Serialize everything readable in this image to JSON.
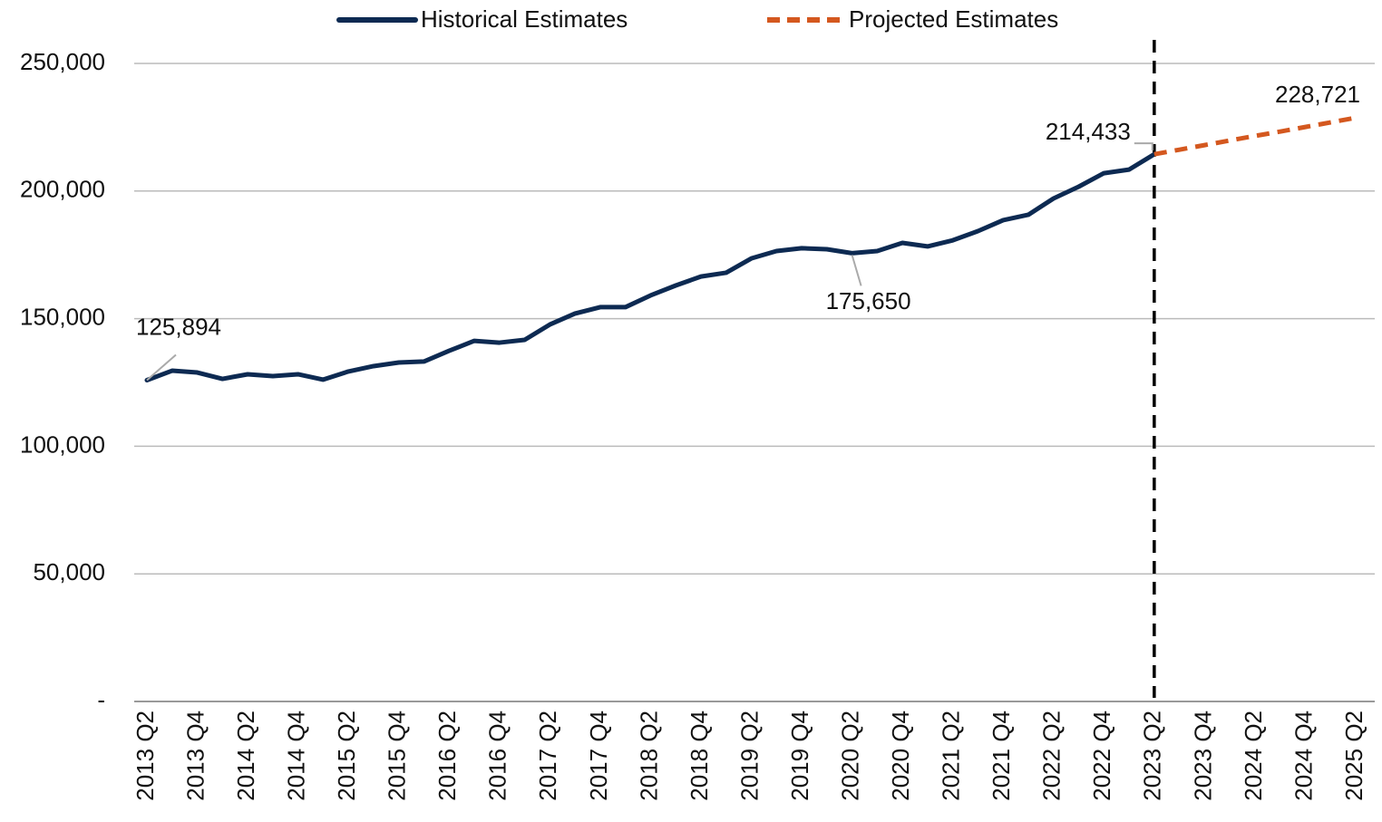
{
  "chart_data": {
    "type": "line",
    "categories": [
      "2013 Q2",
      null,
      "2013 Q4",
      null,
      "2014 Q2",
      null,
      "2014 Q4",
      null,
      "2015 Q2",
      null,
      "2015 Q4",
      null,
      "2016 Q2",
      null,
      "2016 Q4",
      null,
      "2017 Q2",
      null,
      "2017 Q4",
      null,
      "2018 Q2",
      null,
      "2018 Q4",
      null,
      "2019 Q2",
      null,
      "2019 Q4",
      null,
      "2020 Q2",
      null,
      "2020 Q4",
      null,
      "2021 Q2",
      null,
      "2021 Q4",
      null,
      "2022 Q2",
      null,
      "2022 Q4",
      null,
      "2023 Q2",
      null,
      "2023 Q4",
      null,
      "2024 Q2",
      null,
      "2024 Q4",
      null,
      "2025 Q2"
    ],
    "series": [
      {
        "name": "Historical Estimates",
        "color": "#0d2a52",
        "dashed": false,
        "values": [
          125894,
          129600,
          128900,
          126400,
          128200,
          127500,
          128200,
          126100,
          129300,
          131400,
          132800,
          133200,
          137400,
          141300,
          140600,
          141700,
          147700,
          152000,
          154500,
          154500,
          159100,
          163000,
          166500,
          168000,
          173600,
          176500,
          177600,
          177200,
          175650,
          176500,
          179700,
          178300,
          180700,
          184300,
          188600,
          190700,
          197100,
          201700,
          207000,
          208400,
          214433,
          null,
          null,
          null,
          null,
          null,
          null,
          null,
          null
        ],
        "value_labels": [
          "125,894",
          null,
          null,
          null,
          null,
          null,
          null,
          null,
          null,
          null,
          null,
          null,
          null,
          null,
          null,
          null,
          null,
          null,
          null,
          null,
          null,
          null,
          null,
          null,
          null,
          null,
          null,
          null,
          "175,650",
          null,
          null,
          null,
          null,
          null,
          null,
          null,
          null,
          null,
          null,
          null,
          "214,433",
          null,
          null,
          null,
          null,
          null,
          null,
          null,
          null
        ]
      },
      {
        "name": "Projected Estimates",
        "color": "#d4581f",
        "dashed": true,
        "values": [
          null,
          null,
          null,
          null,
          null,
          null,
          null,
          null,
          null,
          null,
          null,
          null,
          null,
          null,
          null,
          null,
          null,
          null,
          null,
          null,
          null,
          null,
          null,
          null,
          null,
          null,
          null,
          null,
          null,
          null,
          null,
          null,
          null,
          null,
          null,
          null,
          null,
          null,
          null,
          null,
          214433,
          216200,
          218000,
          219800,
          221600,
          223300,
          225100,
          226900,
          228721
        ],
        "value_labels": [
          null,
          null,
          null,
          null,
          null,
          null,
          null,
          null,
          null,
          null,
          null,
          null,
          null,
          null,
          null,
          null,
          null,
          null,
          null,
          null,
          null,
          null,
          null,
          null,
          null,
          null,
          null,
          null,
          null,
          null,
          null,
          null,
          null,
          null,
          null,
          null,
          null,
          null,
          null,
          null,
          null,
          null,
          null,
          null,
          null,
          null,
          null,
          null,
          "228,721"
        ]
      }
    ],
    "ylim": [
      0,
      250000
    ],
    "yticks": [
      {
        "value": 0,
        "label": "-"
      },
      {
        "value": 50000,
        "label": "50,000"
      },
      {
        "value": 100000,
        "label": "100,000"
      },
      {
        "value": 150000,
        "label": "150,000"
      },
      {
        "value": 200000,
        "label": "200,000"
      },
      {
        "value": 250000,
        "label": "250,000"
      }
    ],
    "grid": true,
    "legend": "top",
    "vline": "2023 Q2"
  }
}
